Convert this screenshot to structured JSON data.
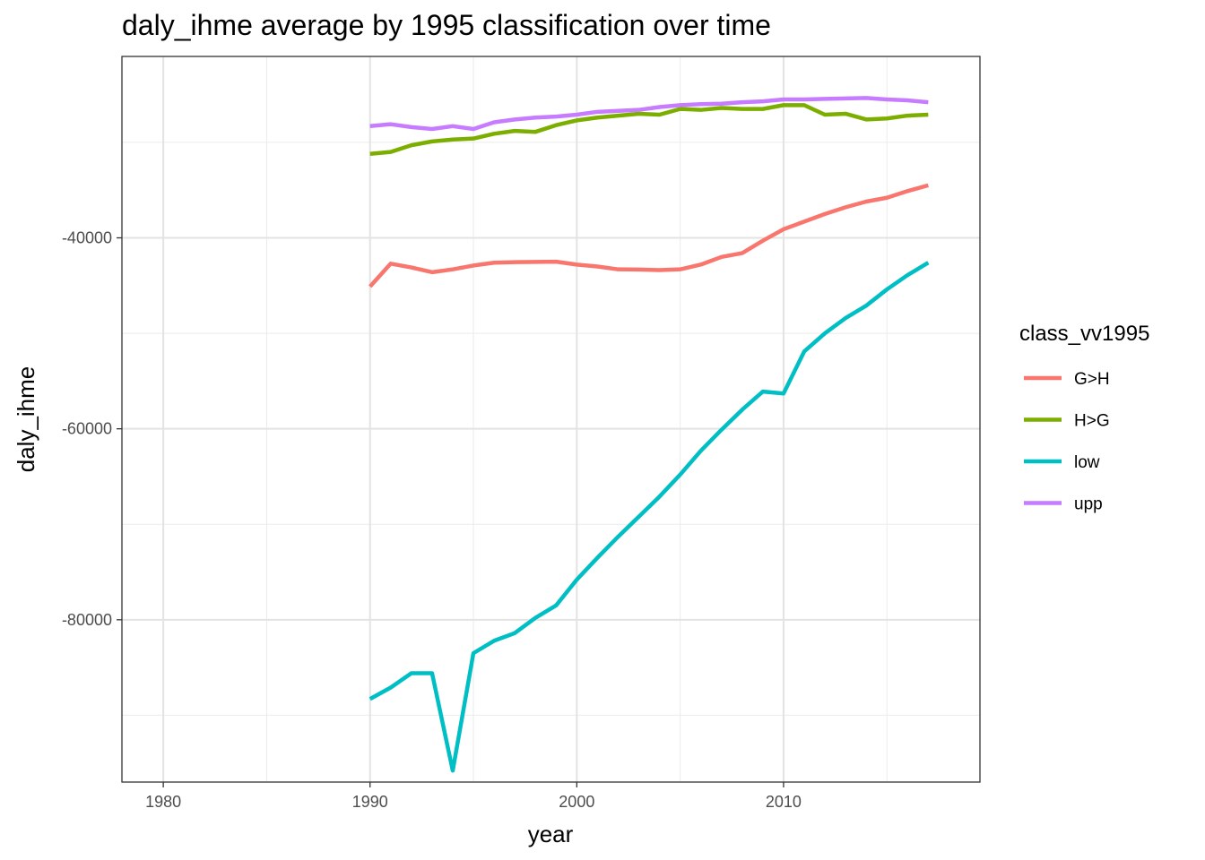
{
  "chart_data": {
    "type": "line",
    "title": "daly_ihme average by 1995 classification over time",
    "xlabel": "year",
    "ylabel": "daly_ihme",
    "xlim": [
      1978,
      2019.5
    ],
    "ylim": [
      -97000,
      -21000
    ],
    "x_ticks": [
      {
        "value": 1980,
        "label": "1980"
      },
      {
        "value": 1990,
        "label": "1990"
      },
      {
        "value": 2000,
        "label": "2000"
      },
      {
        "value": 2010,
        "label": "2010"
      }
    ],
    "x_minor": [
      1985,
      1995,
      2005,
      2015
    ],
    "y_ticks": [
      {
        "value": -40000,
        "label": "-40000"
      },
      {
        "value": -60000,
        "label": "-60000"
      },
      {
        "value": -80000,
        "label": "-80000"
      }
    ],
    "y_minor": [
      -30000,
      -50000,
      -70000,
      -90000
    ],
    "grid": true,
    "legend": {
      "title": "class_vv1995",
      "position": "right"
    },
    "x": [
      1990,
      1991,
      1992,
      1993,
      1994,
      1995,
      1996,
      1997,
      1998,
      1999,
      2000,
      2001,
      2002,
      2003,
      2004,
      2005,
      2006,
      2007,
      2008,
      2009,
      2010,
      2011,
      2012,
      2013,
      2014,
      2015,
      2016,
      2017
    ],
    "series": [
      {
        "name": "G>H",
        "color": "#F8766D",
        "values": [
          -45100,
          -42700,
          -43100,
          -43600,
          -43300,
          -42900,
          -42600,
          -42550,
          -42520,
          -42500,
          -42800,
          -43000,
          -43300,
          -43320,
          -43380,
          -43300,
          -42800,
          -42000,
          -41600,
          -40300,
          -39100,
          -38300,
          -37500,
          -36800,
          -36200,
          -35800,
          -35100,
          -34500
        ]
      },
      {
        "name": "H>G",
        "color": "#7CAE00",
        "values": [
          -31200,
          -31000,
          -30300,
          -29900,
          -29700,
          -29600,
          -29100,
          -28800,
          -28900,
          -28200,
          -27700,
          -27400,
          -27200,
          -27000,
          -27100,
          -26500,
          -26600,
          -26400,
          -26500,
          -26500,
          -26100,
          -26100,
          -27100,
          -27000,
          -27600,
          -27500,
          -27200,
          -27100
        ]
      },
      {
        "name": "low",
        "color": "#00BFC4",
        "values": [
          -88300,
          -87100,
          -85600,
          -85600,
          -95800,
          -83500,
          -82200,
          -81400,
          -79800,
          -78500,
          -75800,
          -73500,
          -71300,
          -69200,
          -67100,
          -64800,
          -62300,
          -60100,
          -58000,
          -56100,
          -56300,
          -51900,
          -50000,
          -48400,
          -47100,
          -45400,
          -43900,
          -42600
        ]
      },
      {
        "name": "upp",
        "color": "#C77CFF",
        "values": [
          -28300,
          -28100,
          -28400,
          -28600,
          -28300,
          -28600,
          -27900,
          -27600,
          -27400,
          -27300,
          -27100,
          -26800,
          -26700,
          -26600,
          -26300,
          -26100,
          -26000,
          -25950,
          -25800,
          -25700,
          -25500,
          -25500,
          -25450,
          -25400,
          -25350,
          -25500,
          -25600,
          -25800
        ]
      }
    ]
  }
}
